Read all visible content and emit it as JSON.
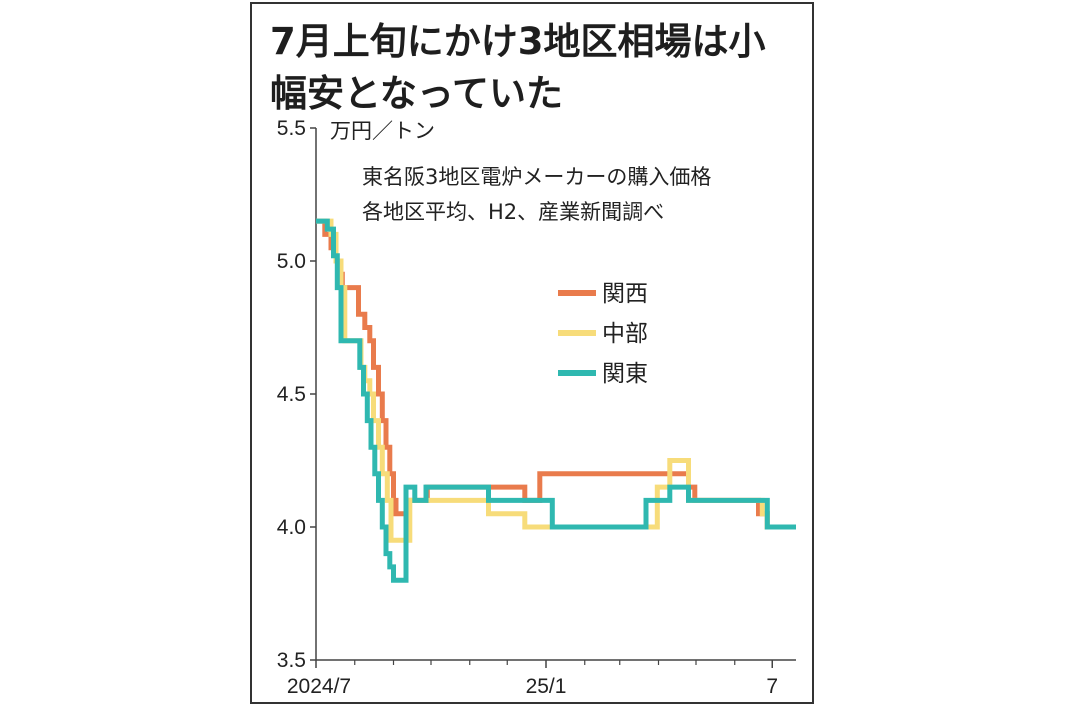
{
  "title_line1": "7月上旬にかけ3地区相場は小",
  "title_line2": "幅安となっていた",
  "chart_data": {
    "type": "line",
    "title": "7月上旬にかけ3地区相場は小幅安となっていた",
    "unit": "万円／トン",
    "notes": [
      "東名阪3地区電炉メーカーの購入価格",
      "各地区平均、H2、産業新聞調べ"
    ],
    "ylim": [
      3.5,
      5.5
    ],
    "yticks": [
      "5.5",
      "5.0",
      "4.5",
      "4.0",
      "3.5"
    ],
    "ytick_values": [
      5.5,
      5.0,
      4.5,
      4.0,
      3.5
    ],
    "xlim": [
      "2024-07-01",
      "2025-07-20"
    ],
    "xticks": [
      {
        "label": "2024/7",
        "date": "2024-07-01"
      },
      {
        "label": "25/1",
        "date": "2025-01-01"
      },
      {
        "label": "7",
        "date": "2025-07-01"
      }
    ],
    "grid": false,
    "legend_placement": "right-middle",
    "series": [
      {
        "name": "関西",
        "color": "#e97b4c",
        "points": [
          [
            "2024-07-01",
            5.15
          ],
          [
            "2024-07-08",
            5.15
          ],
          [
            "2024-07-08",
            5.1
          ],
          [
            "2024-07-13",
            5.1
          ],
          [
            "2024-07-13",
            5.05
          ],
          [
            "2024-07-17",
            5.05
          ],
          [
            "2024-07-17",
            5.0
          ],
          [
            "2024-07-19",
            5.0
          ],
          [
            "2024-07-19",
            4.95
          ],
          [
            "2024-07-22",
            4.95
          ],
          [
            "2024-07-22",
            4.9
          ],
          [
            "2024-08-04",
            4.9
          ],
          [
            "2024-08-04",
            4.8
          ],
          [
            "2024-08-09",
            4.8
          ],
          [
            "2024-08-09",
            4.75
          ],
          [
            "2024-08-13",
            4.75
          ],
          [
            "2024-08-13",
            4.7
          ],
          [
            "2024-08-16",
            4.7
          ],
          [
            "2024-08-16",
            4.6
          ],
          [
            "2024-08-20",
            4.6
          ],
          [
            "2024-08-20",
            4.5
          ],
          [
            "2024-08-23",
            4.5
          ],
          [
            "2024-08-23",
            4.4
          ],
          [
            "2024-08-26",
            4.4
          ],
          [
            "2024-08-26",
            4.3
          ],
          [
            "2024-08-29",
            4.3
          ],
          [
            "2024-08-29",
            4.2
          ],
          [
            "2024-09-01",
            4.2
          ],
          [
            "2024-09-01",
            4.1
          ],
          [
            "2024-09-03",
            4.1
          ],
          [
            "2024-09-03",
            4.05
          ],
          [
            "2024-09-11",
            4.05
          ],
          [
            "2024-09-11",
            4.1
          ],
          [
            "2024-09-28",
            4.1
          ],
          [
            "2024-09-28",
            4.15
          ],
          [
            "2024-12-15",
            4.15
          ],
          [
            "2024-12-15",
            4.1
          ],
          [
            "2024-12-27",
            4.1
          ],
          [
            "2024-12-27",
            4.2
          ],
          [
            "2025-04-25",
            4.2
          ],
          [
            "2025-04-25",
            4.15
          ],
          [
            "2025-04-30",
            4.15
          ],
          [
            "2025-04-30",
            4.1
          ],
          [
            "2025-06-20",
            4.1
          ],
          [
            "2025-06-20",
            4.05
          ],
          [
            "2025-06-27",
            4.05
          ],
          [
            "2025-06-27",
            4.0
          ],
          [
            "2025-07-20",
            4.0
          ]
        ]
      },
      {
        "name": "中部",
        "color": "#f7dc7a",
        "points": [
          [
            "2024-07-01",
            5.15
          ],
          [
            "2024-07-13",
            5.15
          ],
          [
            "2024-07-13",
            5.1
          ],
          [
            "2024-07-17",
            5.1
          ],
          [
            "2024-07-17",
            5.0
          ],
          [
            "2024-07-21",
            5.0
          ],
          [
            "2024-07-21",
            4.9
          ],
          [
            "2024-07-24",
            4.9
          ],
          [
            "2024-07-24",
            4.7
          ],
          [
            "2024-08-06",
            4.7
          ],
          [
            "2024-08-06",
            4.6
          ],
          [
            "2024-08-09",
            4.6
          ],
          [
            "2024-08-09",
            4.55
          ],
          [
            "2024-08-13",
            4.55
          ],
          [
            "2024-08-13",
            4.5
          ],
          [
            "2024-08-16",
            4.5
          ],
          [
            "2024-08-16",
            4.4
          ],
          [
            "2024-08-20",
            4.4
          ],
          [
            "2024-08-20",
            4.3
          ],
          [
            "2024-08-23",
            4.3
          ],
          [
            "2024-08-23",
            4.2
          ],
          [
            "2024-08-27",
            4.2
          ],
          [
            "2024-08-27",
            4.1
          ],
          [
            "2024-08-30",
            4.1
          ],
          [
            "2024-08-30",
            3.95
          ],
          [
            "2024-09-14",
            3.95
          ],
          [
            "2024-09-14",
            4.1
          ],
          [
            "2024-11-16",
            4.1
          ],
          [
            "2024-11-16",
            4.05
          ],
          [
            "2024-12-15",
            4.05
          ],
          [
            "2024-12-15",
            4.0
          ],
          [
            "2025-03-31",
            4.0
          ],
          [
            "2025-03-31",
            4.15
          ],
          [
            "2025-04-10",
            4.15
          ],
          [
            "2025-04-10",
            4.25
          ],
          [
            "2025-04-25",
            4.25
          ],
          [
            "2025-04-25",
            4.1
          ],
          [
            "2025-06-23",
            4.1
          ],
          [
            "2025-06-23",
            4.05
          ],
          [
            "2025-06-27",
            4.05
          ],
          [
            "2025-06-27",
            4.0
          ],
          [
            "2025-07-20",
            4.0
          ]
        ]
      },
      {
        "name": "関東",
        "color": "#2fb8b0",
        "points": [
          [
            "2024-07-01",
            5.15
          ],
          [
            "2024-07-10",
            5.15
          ],
          [
            "2024-07-10",
            5.12
          ],
          [
            "2024-07-15",
            5.12
          ],
          [
            "2024-07-15",
            5.02
          ],
          [
            "2024-07-18",
            5.02
          ],
          [
            "2024-07-18",
            4.9
          ],
          [
            "2024-07-21",
            4.9
          ],
          [
            "2024-07-21",
            4.7
          ],
          [
            "2024-08-05",
            4.7
          ],
          [
            "2024-08-05",
            4.6
          ],
          [
            "2024-08-08",
            4.6
          ],
          [
            "2024-08-08",
            4.5
          ],
          [
            "2024-08-11",
            4.5
          ],
          [
            "2024-08-11",
            4.4
          ],
          [
            "2024-08-14",
            4.4
          ],
          [
            "2024-08-14",
            4.3
          ],
          [
            "2024-08-17",
            4.3
          ],
          [
            "2024-08-17",
            4.2
          ],
          [
            "2024-08-20",
            4.2
          ],
          [
            "2024-08-20",
            4.1
          ],
          [
            "2024-08-23",
            4.1
          ],
          [
            "2024-08-23",
            4.0
          ],
          [
            "2024-08-26",
            4.0
          ],
          [
            "2024-08-26",
            3.9
          ],
          [
            "2024-08-29",
            3.9
          ],
          [
            "2024-08-29",
            3.85
          ],
          [
            "2024-09-01",
            3.85
          ],
          [
            "2024-09-01",
            3.8
          ],
          [
            "2024-09-11",
            3.8
          ],
          [
            "2024-09-11",
            4.15
          ],
          [
            "2024-09-18",
            4.15
          ],
          [
            "2024-09-18",
            4.1
          ],
          [
            "2024-09-27",
            4.1
          ],
          [
            "2024-09-27",
            4.15
          ],
          [
            "2024-11-16",
            4.15
          ],
          [
            "2024-11-16",
            4.1
          ],
          [
            "2025-01-06",
            4.1
          ],
          [
            "2025-01-06",
            4.0
          ],
          [
            "2025-03-22",
            4.0
          ],
          [
            "2025-03-22",
            4.1
          ],
          [
            "2025-04-10",
            4.1
          ],
          [
            "2025-04-10",
            4.15
          ],
          [
            "2025-04-25",
            4.15
          ],
          [
            "2025-04-25",
            4.1
          ],
          [
            "2025-06-27",
            4.1
          ],
          [
            "2025-06-27",
            4.0
          ],
          [
            "2025-07-20",
            4.0
          ]
        ]
      }
    ]
  }
}
